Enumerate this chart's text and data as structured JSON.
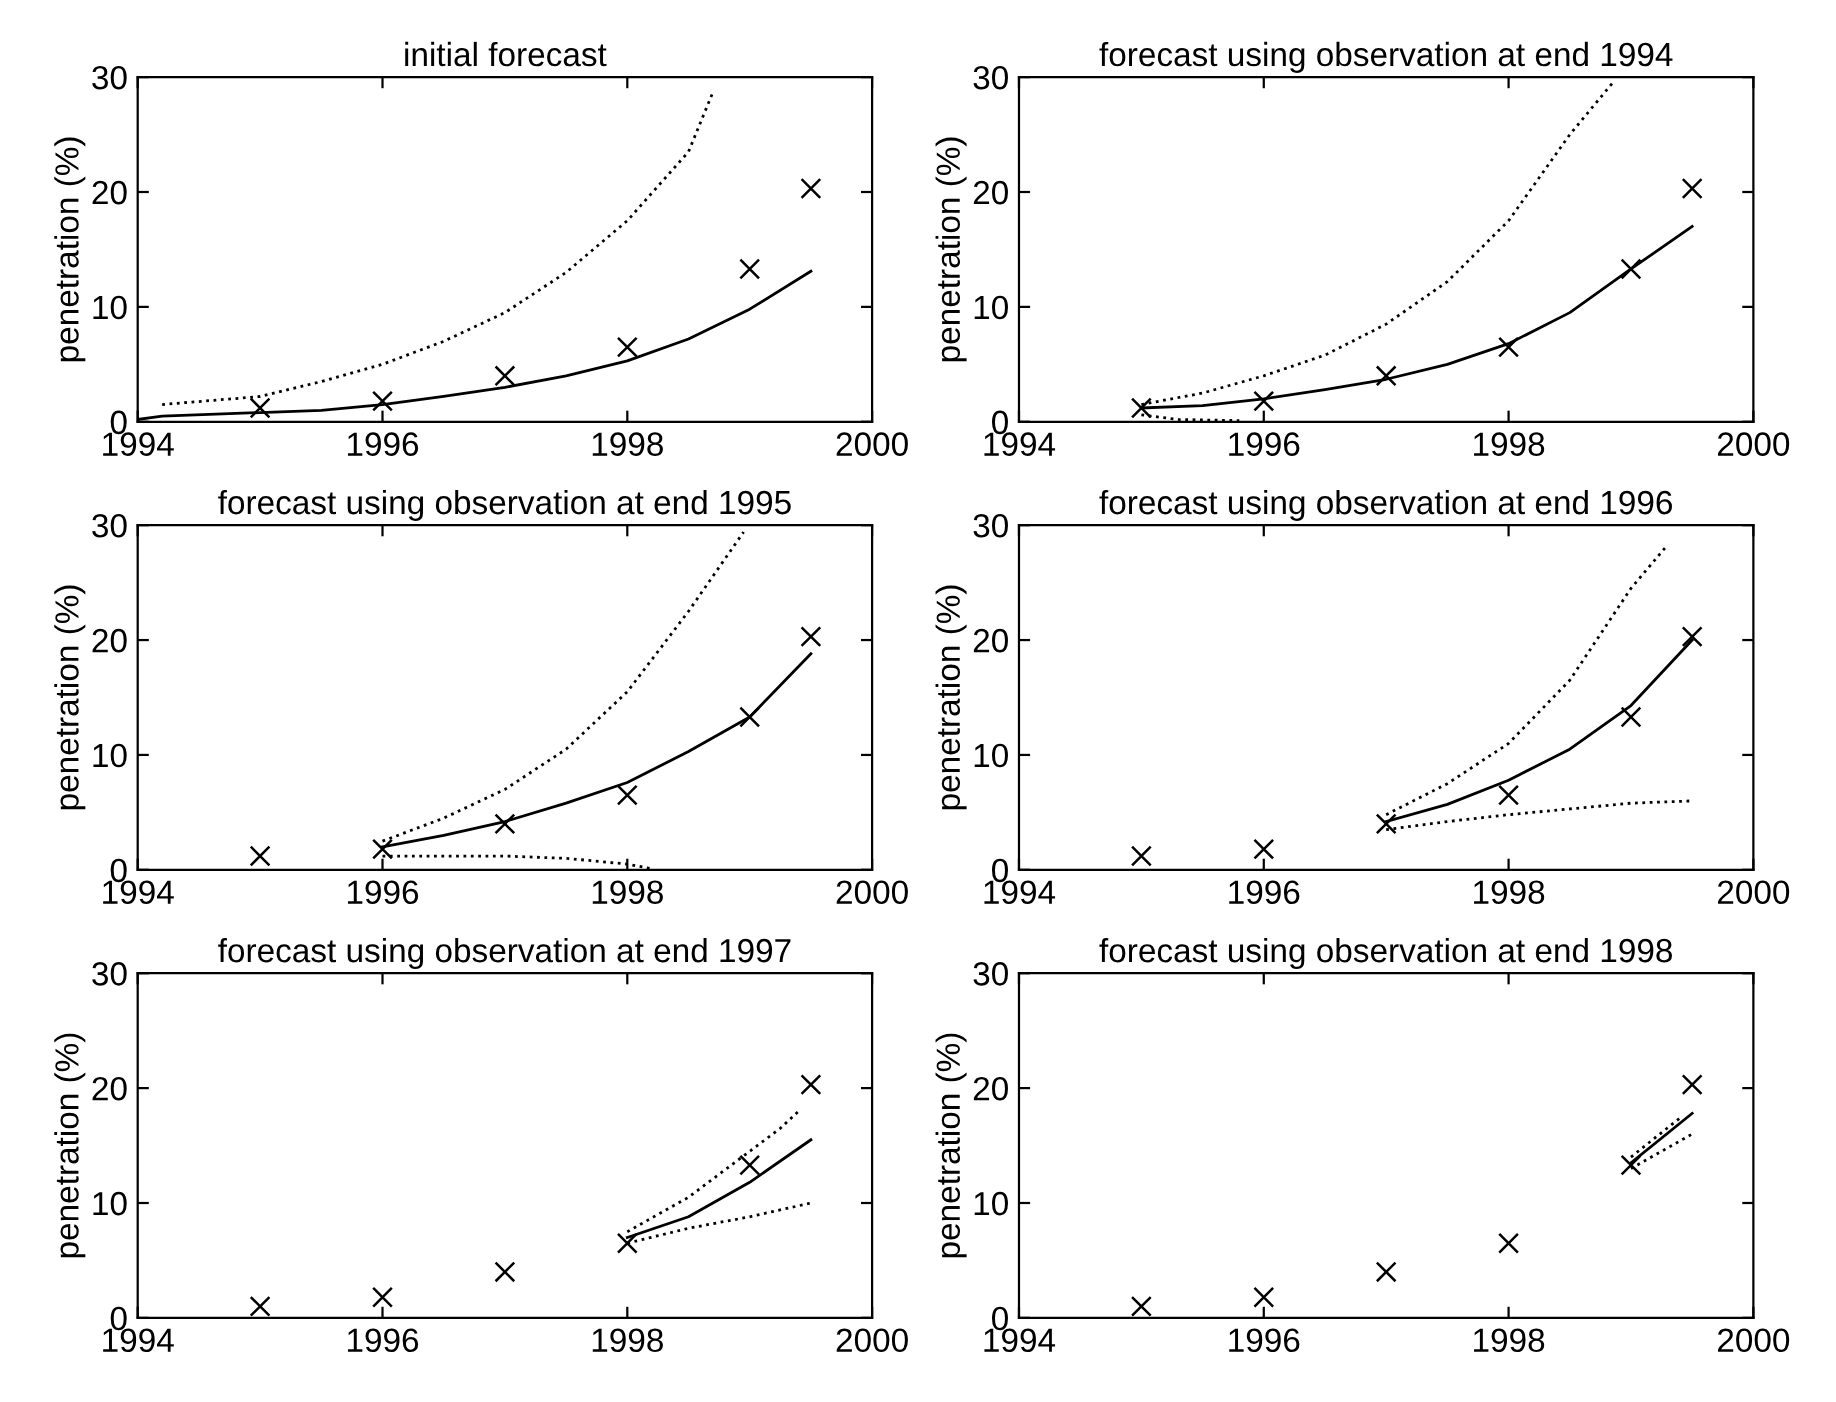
{
  "chart_data": [
    {
      "type": "line",
      "title": "initial forecast",
      "ylabel": "penetration (%)",
      "xlim": [
        1994,
        2000
      ],
      "ylim": [
        0,
        30
      ],
      "xticks": [
        1994,
        1996,
        1998,
        2000
      ],
      "yticks": [
        0,
        10,
        20,
        30
      ],
      "grid": false,
      "legend": false,
      "series": [
        {
          "type": "scatter",
          "marker": "cross",
          "color": "#000000",
          "x": [
            1995,
            1996,
            1997,
            1998,
            1999,
            1999.5
          ],
          "values": [
            1.2,
            1.8,
            4.0,
            6.5,
            13.3,
            20.3
          ]
        },
        {
          "type": "line",
          "line_style": "solid",
          "color": "#000000",
          "x": [
            1994,
            1994.2,
            1995,
            1995.5,
            1996,
            1996.5,
            1997,
            1997.5,
            1998,
            1998.5,
            1999,
            1999.5
          ],
          "values": [
            0.2,
            0.5,
            0.8,
            1.0,
            1.5,
            2.2,
            3.0,
            4.0,
            5.3,
            7.2,
            9.8,
            13.1
          ]
        },
        {
          "type": "line",
          "line_style": "dotted",
          "color": "#000000",
          "x": [
            1994.2,
            1995,
            1995.5,
            1996,
            1996.5,
            1997,
            1997.5,
            1998,
            1998.5,
            1998.7
          ],
          "values": [
            1.5,
            2.2,
            3.5,
            5.0,
            7.0,
            9.5,
            13.0,
            17.5,
            23.5,
            28.7
          ]
        }
      ]
    },
    {
      "type": "line",
      "title": "forecast using observation at end 1994",
      "ylabel": "penetration (%)",
      "xlim": [
        1994,
        2000
      ],
      "ylim": [
        0,
        30
      ],
      "xticks": [
        1994,
        1996,
        1998,
        2000
      ],
      "yticks": [
        0,
        10,
        20,
        30
      ],
      "grid": false,
      "legend": false,
      "series": [
        {
          "type": "scatter",
          "marker": "cross",
          "color": "#000000",
          "x": [
            1995,
            1996,
            1997,
            1998,
            1999,
            1999.5
          ],
          "values": [
            1.2,
            1.8,
            4.0,
            6.5,
            13.3,
            20.3
          ]
        },
        {
          "type": "line",
          "line_style": "solid",
          "color": "#000000",
          "x": [
            1995,
            1995.5,
            1996,
            1996.5,
            1997,
            1997.5,
            1998,
            1998.5,
            1999,
            1999.5
          ],
          "values": [
            1.2,
            1.4,
            2.0,
            2.8,
            3.7,
            5.0,
            6.8,
            9.5,
            13.3,
            17.0
          ]
        },
        {
          "type": "line",
          "line_style": "dotted",
          "color": "#000000",
          "x": [
            1995,
            1995.5,
            1996,
            1996.5,
            1997,
            1997.5,
            1998,
            1998.5,
            1998.85
          ],
          "values": [
            1.5,
            2.5,
            4.0,
            5.8,
            8.5,
            12.2,
            17.5,
            25.0,
            29.5
          ]
        },
        {
          "type": "line",
          "line_style": "dotted",
          "color": "#000000",
          "x": [
            1995,
            1995.3,
            1995.8
          ],
          "values": [
            0.6,
            0.2,
            0.1
          ]
        }
      ]
    },
    {
      "type": "line",
      "title": "forecast using observation at end 1995",
      "ylabel": "penetration (%)",
      "xlim": [
        1994,
        2000
      ],
      "ylim": [
        0,
        30
      ],
      "xticks": [
        1994,
        1996,
        1998,
        2000
      ],
      "yticks": [
        0,
        10,
        20,
        30
      ],
      "grid": false,
      "legend": false,
      "series": [
        {
          "type": "scatter",
          "marker": "cross",
          "color": "#000000",
          "x": [
            1995,
            1996,
            1997,
            1998,
            1999,
            1999.5
          ],
          "values": [
            1.2,
            1.8,
            4.0,
            6.5,
            13.3,
            20.3
          ]
        },
        {
          "type": "line",
          "line_style": "solid",
          "color": "#000000",
          "x": [
            1996,
            1996.5,
            1997,
            1997.5,
            1998,
            1998.5,
            1999,
            1999.5
          ],
          "values": [
            2.0,
            3.0,
            4.2,
            5.8,
            7.6,
            10.3,
            13.3,
            18.8
          ]
        },
        {
          "type": "line",
          "line_style": "dotted",
          "color": "#000000",
          "x": [
            1996,
            1996.5,
            1997,
            1997.5,
            1998,
            1998.5,
            1998.95
          ],
          "values": [
            2.5,
            4.5,
            7.0,
            10.5,
            15.5,
            22.5,
            29.4
          ]
        },
        {
          "type": "line",
          "line_style": "dotted",
          "color": "#000000",
          "x": [
            1996,
            1996.5,
            1997,
            1997.5,
            1998,
            1998.2
          ],
          "values": [
            1.2,
            1.2,
            1.2,
            1.0,
            0.5,
            0.1
          ]
        }
      ]
    },
    {
      "type": "line",
      "title": "forecast using observation at end 1996",
      "ylabel": "penetration (%)",
      "xlim": [
        1994,
        2000
      ],
      "ylim": [
        0,
        30
      ],
      "xticks": [
        1994,
        1996,
        1998,
        2000
      ],
      "yticks": [
        0,
        10,
        20,
        30
      ],
      "grid": false,
      "legend": false,
      "series": [
        {
          "type": "scatter",
          "marker": "cross",
          "color": "#000000",
          "x": [
            1995,
            1996,
            1997,
            1998,
            1999,
            1999.5
          ],
          "values": [
            1.2,
            1.8,
            4.0,
            6.5,
            13.3,
            20.3
          ]
        },
        {
          "type": "line",
          "line_style": "solid",
          "color": "#000000",
          "x": [
            1997,
            1997.5,
            1998,
            1998.5,
            1999,
            1999.5
          ],
          "values": [
            4.2,
            5.7,
            7.8,
            10.5,
            14.3,
            20.0
          ]
        },
        {
          "type": "line",
          "line_style": "dotted",
          "color": "#000000",
          "x": [
            1997,
            1997.5,
            1998,
            1998.5,
            1999,
            1999.3
          ],
          "values": [
            4.8,
            7.5,
            11.0,
            16.5,
            24.5,
            28.3
          ]
        },
        {
          "type": "line",
          "line_style": "dotted",
          "color": "#000000",
          "x": [
            1997,
            1997.5,
            1998,
            1998.5,
            1999,
            1999.5
          ],
          "values": [
            3.5,
            4.2,
            4.8,
            5.3,
            5.8,
            6.0
          ]
        }
      ]
    },
    {
      "type": "line",
      "title": "forecast using observation at end 1997",
      "ylabel": "penetration (%)",
      "xlim": [
        1994,
        2000
      ],
      "ylim": [
        0,
        30
      ],
      "xticks": [
        1994,
        1996,
        1998,
        2000
      ],
      "yticks": [
        0,
        10,
        20,
        30
      ],
      "grid": false,
      "legend": false,
      "series": [
        {
          "type": "scatter",
          "marker": "cross",
          "color": "#000000",
          "x": [
            1995,
            1996,
            1997,
            1998,
            1999,
            1999.5
          ],
          "values": [
            1.0,
            1.8,
            4.0,
            6.5,
            13.3,
            20.3
          ]
        },
        {
          "type": "line",
          "line_style": "solid",
          "color": "#000000",
          "x": [
            1998,
            1998.5,
            1999,
            1999.5
          ],
          "values": [
            7.0,
            8.8,
            11.8,
            15.5
          ]
        },
        {
          "type": "line",
          "line_style": "dotted",
          "color": "#000000",
          "x": [
            1998,
            1998.5,
            1999,
            1999.25,
            1999.4
          ],
          "values": [
            7.5,
            10.5,
            14.5,
            16.5,
            18.0
          ]
        },
        {
          "type": "line",
          "line_style": "dotted",
          "color": "#000000",
          "x": [
            1998,
            1998.5,
            1999,
            1999.5
          ],
          "values": [
            6.5,
            7.8,
            8.8,
            10.0
          ]
        }
      ]
    },
    {
      "type": "line",
      "title": "forecast using observation at end 1998",
      "ylabel": "penetration (%)",
      "xlim": [
        1994,
        2000
      ],
      "ylim": [
        0,
        30
      ],
      "xticks": [
        1994,
        1996,
        1998,
        2000
      ],
      "yticks": [
        0,
        10,
        20,
        30
      ],
      "grid": false,
      "legend": false,
      "series": [
        {
          "type": "scatter",
          "marker": "cross",
          "color": "#000000",
          "x": [
            1995,
            1996,
            1997,
            1998,
            1999,
            1999.5
          ],
          "values": [
            1.0,
            1.8,
            4.0,
            6.5,
            13.3,
            20.3
          ]
        },
        {
          "type": "line",
          "line_style": "solid",
          "color": "#000000",
          "x": [
            1999,
            1999.5
          ],
          "values": [
            13.5,
            17.8
          ]
        },
        {
          "type": "line",
          "line_style": "dotted",
          "color": "#000000",
          "x": [
            1999,
            1999.4
          ],
          "values": [
            14.0,
            17.4
          ]
        },
        {
          "type": "line",
          "line_style": "dotted",
          "color": "#000000",
          "x": [
            1999,
            1999.5
          ],
          "values": [
            13.0,
            16.0
          ]
        }
      ]
    }
  ]
}
